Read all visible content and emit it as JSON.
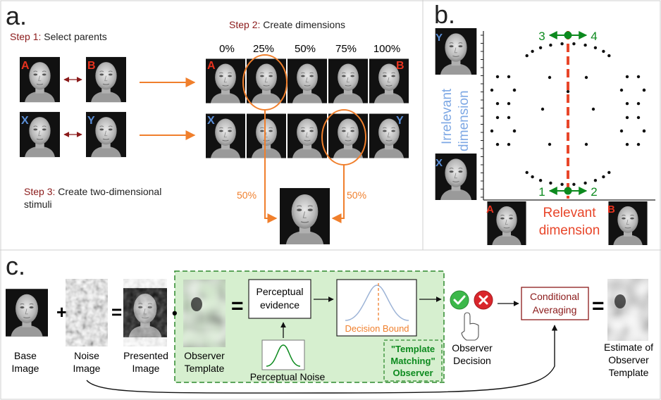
{
  "panels": {
    "a": "a.",
    "b": "b.",
    "c": "c."
  },
  "panel_a": {
    "step1": {
      "num": "Step 1:",
      "text": " Select parents"
    },
    "step2": {
      "num": "Step 2:",
      "text": " Create dimensions"
    },
    "step3": {
      "num": "Step 3:",
      "text": " Create two-dimensional",
      "text2": "stimuli"
    },
    "percentages": [
      "0%",
      "25%",
      "50%",
      "75%",
      "100%"
    ],
    "parent_labels": {
      "a": "A",
      "b": "B",
      "x": "X",
      "y": "Y"
    },
    "mix_left": "50%",
    "mix_right": "50%"
  },
  "panel_b": {
    "face_labels": {
      "y": "Y",
      "x": "X",
      "a": "A",
      "b": "B"
    },
    "irrelevant_line1": "Irrelevant",
    "irrelevant_line2": "dimension",
    "relevant_line1": "Relevant",
    "relevant_line2": "dimension",
    "top_left": "3",
    "top_right": "4",
    "bottom_left": "1",
    "bottom_right": "2"
  },
  "panel_c": {
    "base_image_1": "Base",
    "base_image_2": "Image",
    "noise_image_1": "Noise",
    "noise_image_2": "Image",
    "presented_1": "Presented",
    "presented_2": "Image",
    "template_1": "Observer",
    "template_2": "Template",
    "plus": "+",
    "equals": "=",
    "dot": "•",
    "perceptual_1": "Perceptual",
    "perceptual_2": "evidence",
    "decision_bound": "Decision Bound",
    "perceptual_noise": "Perceptual Noise",
    "tm_1": "\"Template",
    "tm_2": "Matching\"",
    "tm_3": "Observer",
    "observer_decision_1": "Observer",
    "observer_decision_2": "Decision",
    "cond_1": "Conditional",
    "cond_2": "Averaging",
    "estimate_1": "Estimate of",
    "estimate_2": "Observer",
    "estimate_3": "Template"
  },
  "colors": {
    "step_red": "#8b1a1a",
    "orange": "#f07f2c",
    "letter_red": "#e8321e",
    "letter_blue": "#5b8fd8",
    "green": "#0c8a1e",
    "dim_red": "#e8462a",
    "dim_blue": "#7ea8e4",
    "cond_red": "#8b1a1a",
    "green_box": "#d6efcf",
    "green_dash": "#2f8a2f"
  }
}
